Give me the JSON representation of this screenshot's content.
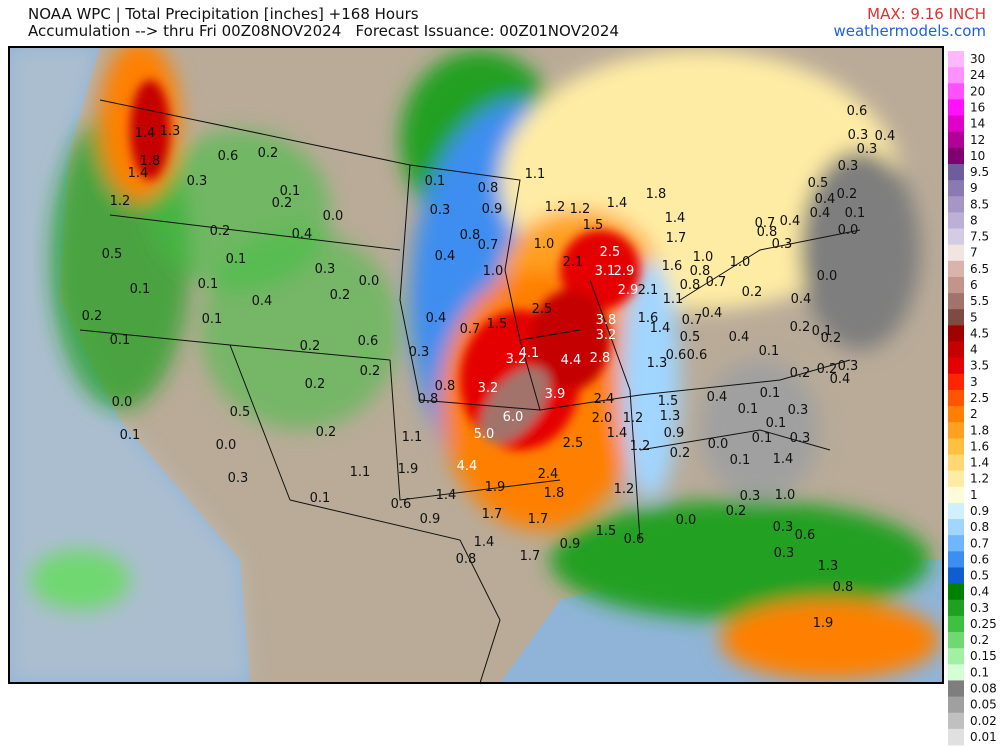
{
  "header": {
    "title": "NOAA WPC | Total Precipitation [inches] +168 Hours",
    "subtitle": "Accumulation --> thru Fri 00Z08NOV2024   Forecast Issuance: 00Z01NOV2024",
    "max": "MAX: 9.16 INCH",
    "site": "weathermodels.com"
  },
  "legend": {
    "items": [
      {
        "label": "30",
        "color": "#ffb8ff"
      },
      {
        "label": "24",
        "color": "#ff90ff"
      },
      {
        "label": "20",
        "color": "#ff50ff"
      },
      {
        "label": "16",
        "color": "#ff10ff"
      },
      {
        "label": "14",
        "color": "#e000c8"
      },
      {
        "label": "12",
        "color": "#b00098"
      },
      {
        "label": "10",
        "color": "#800070"
      },
      {
        "label": "9.5",
        "color": "#6e5c9c"
      },
      {
        "label": "9",
        "color": "#8a7ab2"
      },
      {
        "label": "8.5",
        "color": "#a696c6"
      },
      {
        "label": "8",
        "color": "#bdb0d6"
      },
      {
        "label": "7.5",
        "color": "#d4cce4"
      },
      {
        "label": "7",
        "color": "#f2e4e0"
      },
      {
        "label": "6.5",
        "color": "#dab4aa"
      },
      {
        "label": "6",
        "color": "#c2948a"
      },
      {
        "label": "5.5",
        "color": "#a2736a"
      },
      {
        "label": "5",
        "color": "#7e4a42"
      },
      {
        "label": "4.5",
        "color": "#a00000"
      },
      {
        "label": "4",
        "color": "#c40000"
      },
      {
        "label": "3.5",
        "color": "#e40000"
      },
      {
        "label": "3",
        "color": "#ff2400"
      },
      {
        "label": "2.5",
        "color": "#ff5400"
      },
      {
        "label": "2",
        "color": "#ff8000"
      },
      {
        "label": "1.8",
        "color": "#ffa020"
      },
      {
        "label": "1.6",
        "color": "#ffc040"
      },
      {
        "label": "1.4",
        "color": "#ffd874"
      },
      {
        "label": "1.2",
        "color": "#ffeca4"
      },
      {
        "label": "1",
        "color": "#fffad8"
      },
      {
        "label": "0.9",
        "color": "#d0f0ff"
      },
      {
        "label": "0.8",
        "color": "#a0d6ff"
      },
      {
        "label": "0.7",
        "color": "#70b6ff"
      },
      {
        "label": "0.6",
        "color": "#3c8ef0"
      },
      {
        "label": "0.5",
        "color": "#0e5ed0"
      },
      {
        "label": "0.4",
        "color": "#008000"
      },
      {
        "label": "0.3",
        "color": "#20a020"
      },
      {
        "label": "0.25",
        "color": "#40c040"
      },
      {
        "label": "0.2",
        "color": "#70d870"
      },
      {
        "label": "0.15",
        "color": "#a2f0a2"
      },
      {
        "label": "0.1",
        "color": "#d4ffd4"
      },
      {
        "label": "0.08",
        "color": "#7e7e7e"
      },
      {
        "label": "0.05",
        "color": "#a0a0a0"
      },
      {
        "label": "0.02",
        "color": "#c0c0c0"
      },
      {
        "label": "0.01",
        "color": "#e0e0e0"
      }
    ]
  },
  "map_labels": [
    "1.4",
    "1.3",
    "1.8",
    "1.4",
    "1.2",
    "0.6",
    "0.2",
    "0.3",
    "0.1",
    "0.2",
    "0.0",
    "0.2",
    "0.4",
    "0.5",
    "0.1",
    "0.3",
    "0.1",
    "0.1",
    "0.0",
    "0.2",
    "0.4",
    "0.2",
    "0.1",
    "0.1",
    "0.6",
    "0.2",
    "0.2",
    "0.2",
    "0.0",
    "0.5",
    "0.1",
    "0.2",
    "0.0",
    "0.3",
    "1.1",
    "0.1",
    "0.1",
    "0.3",
    "0.8",
    "0.9",
    "1.1",
    "0.8",
    "0.7",
    "0.4",
    "1.2",
    "1.2",
    "1.4",
    "1.5",
    "1.0",
    "2.5",
    "2.1",
    "1.0",
    "3.1",
    "2.9",
    "2.9",
    "0.4",
    "0.7",
    "1.5",
    "2.5",
    "3.8",
    "3.2",
    "0.3",
    "4.1",
    "3.2",
    "4.4",
    "2.8",
    "0.8",
    "3.2",
    "3.9",
    "0.8",
    "6.0",
    "5.0",
    "1.1",
    "1.9",
    "4.4",
    "2.5",
    "2.4",
    "2.0",
    "1.2",
    "1.4",
    "2.4",
    "1.9",
    "1.4",
    "1.8",
    "0.6",
    "0.9",
    "1.7",
    "1.7",
    "1.4",
    "0.8",
    "1.7",
    "0.9",
    "1.2",
    "1.5",
    "0.6",
    "1.2",
    "1.5",
    "1.3",
    "0.9",
    "0.2",
    "1.8",
    "1.4",
    "1.7",
    "1.6",
    "2.1",
    "1.1",
    "1.6",
    "1.4",
    "0.7",
    "0.5",
    "0.6",
    "0.6",
    "1.3",
    "1.0",
    "0.8",
    "0.8",
    "0.7",
    "1.0",
    "0.4",
    "0.4",
    "0.4",
    "0.1",
    "0.0",
    "0.1",
    "0.3",
    "0.0",
    "0.2",
    "1.0",
    "0.3",
    "0.6",
    "0.3",
    "1.3",
    "0.8",
    "1.9",
    "0.1",
    "0.1",
    "0.1",
    "0.3",
    "0.3",
    "1.4",
    "0.2",
    "0.1",
    "0.2",
    "0.1",
    "0.4",
    "0.2",
    "0.2",
    "0.2",
    "0.3",
    "0.4",
    "0.6",
    "0.3",
    "0.4",
    "0.3",
    "0.3",
    "0.5",
    "0.4",
    "0.2",
    "0.4",
    "0.1",
    "0.7",
    "0.4",
    "0.8",
    "0.3",
    "0.0",
    "0.0"
  ]
}
